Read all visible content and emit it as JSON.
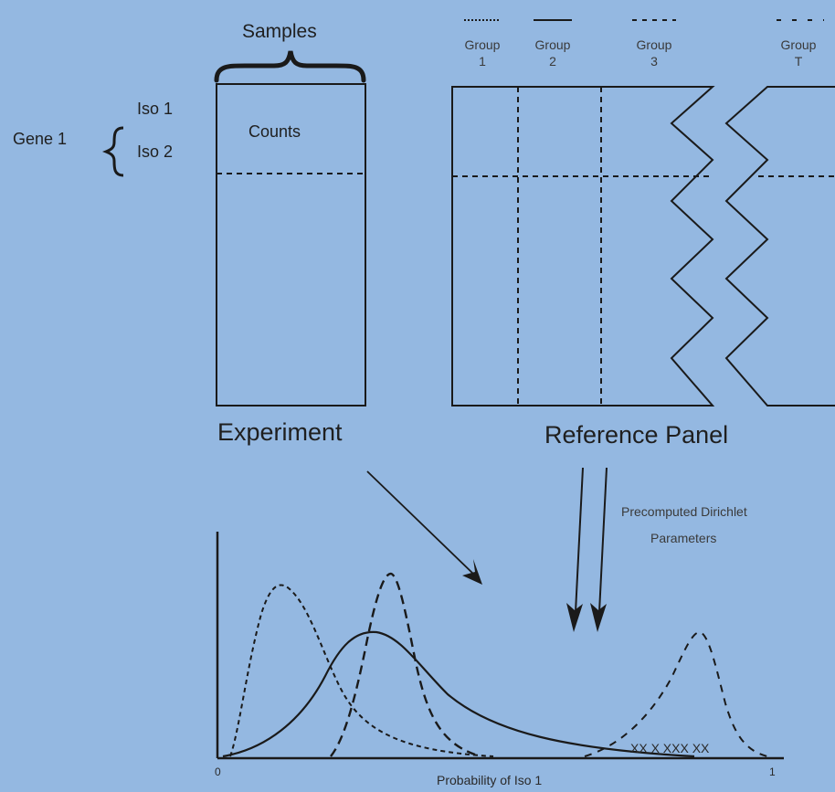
{
  "experiment": {
    "title": "Experiment",
    "samples_label": "Samples",
    "counts_label": "Counts",
    "gene_label": "Gene 1",
    "isoforms": [
      "Iso 1",
      "Iso 2"
    ]
  },
  "reference_panel": {
    "title": "Reference Panel",
    "groups": [
      {
        "name": "Group",
        "index": "1",
        "line_style": "dotted"
      },
      {
        "name": "Group",
        "index": "2",
        "line_style": "solid"
      },
      {
        "name": "Group",
        "index": "3",
        "line_style": "dashed"
      },
      {
        "name": "Group",
        "index": "T",
        "line_style": "wide-dashed"
      }
    ]
  },
  "annotation": {
    "dirichlet_line1": "Precomputed Dirichlet",
    "dirichlet_line2": "Parameters"
  },
  "plot": {
    "xlabel": "Probability of Iso 1",
    "x_min_label": "0",
    "x_max_label": "1",
    "sample_marks": "XX  X XXX   XX"
  },
  "colors": {
    "background": "#94b8e1",
    "ink": "#1f1f1f"
  }
}
